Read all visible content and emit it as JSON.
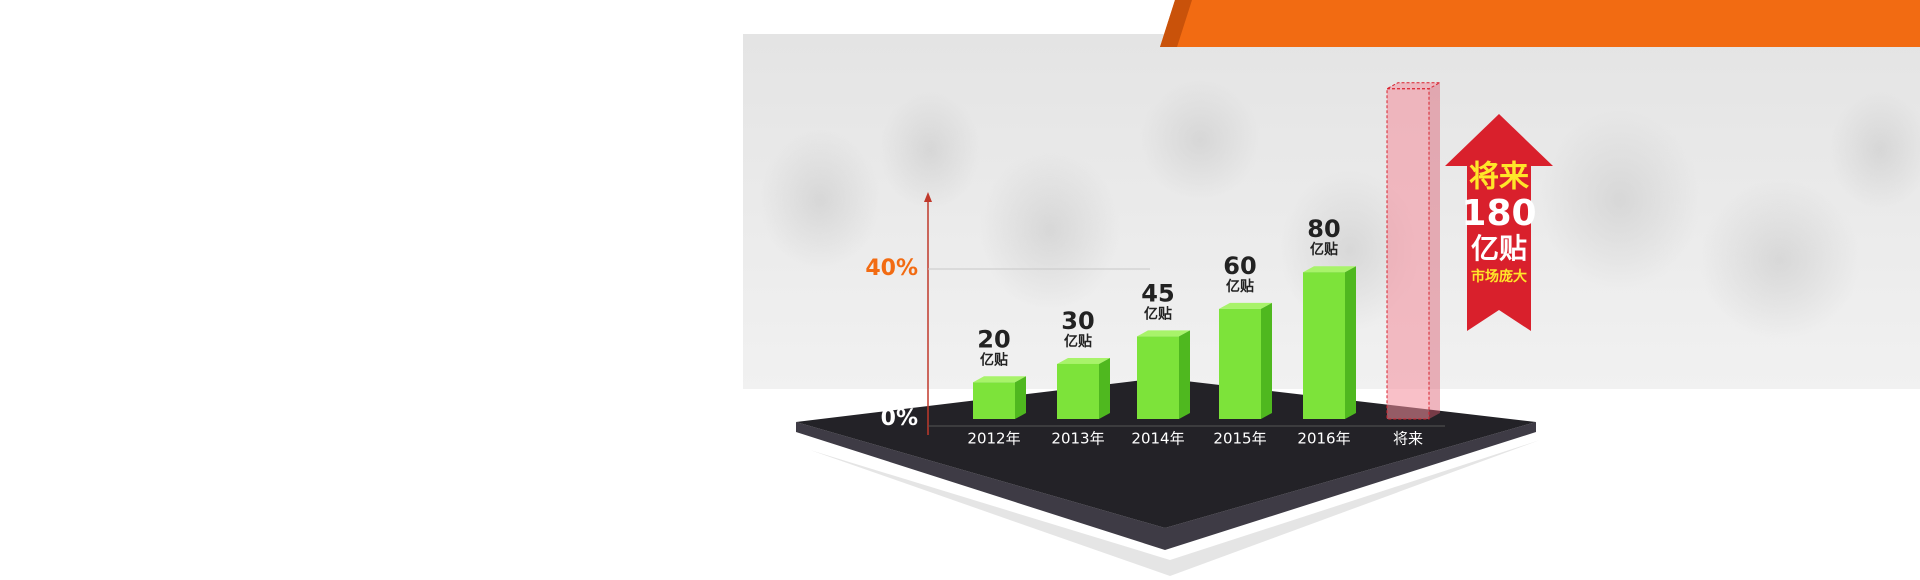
{
  "chart_data": {
    "type": "bar3d",
    "categories": [
      "2012年",
      "2013年",
      "2014年",
      "2015年",
      "2016年",
      "将来"
    ],
    "values": [
      20,
      30,
      45,
      60,
      80,
      180
    ],
    "unit_label": "亿贴",
    "colors": [
      "#7de33a",
      "#7de33a",
      "#7de33a",
      "#7de33a",
      "#7de33a",
      "#f4a6b0"
    ],
    "ylim": [
      0,
      200
    ],
    "y2lim": [
      0,
      100
    ],
    "y2ticks": [
      {
        "value": 0,
        "label": "0%"
      },
      {
        "value": 40,
        "label": "40%"
      }
    ],
    "grid": true,
    "callout_note": "市场庞大"
  }
}
